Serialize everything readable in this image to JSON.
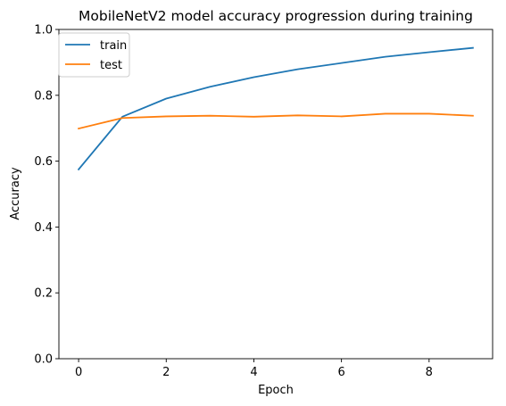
{
  "chart_data": {
    "type": "line",
    "title": "MobileNetV2 model accuracy progression during training",
    "xlabel": "Epoch",
    "ylabel": "Accuracy",
    "xlim": [
      -0.45,
      9.45
    ],
    "ylim": [
      0.0,
      1.0
    ],
    "xticks": [
      0,
      2,
      4,
      6,
      8
    ],
    "xtick_labels": [
      "0",
      "2",
      "4",
      "6",
      "8"
    ],
    "yticks": [
      0.0,
      0.2,
      0.4,
      0.6,
      0.8,
      1.0
    ],
    "ytick_labels": [
      "0.0",
      "0.2",
      "0.4",
      "0.6",
      "0.8",
      "1.0"
    ],
    "grid": false,
    "legend_position": "top-left",
    "x": [
      0,
      1,
      2,
      3,
      4,
      5,
      6,
      7,
      8,
      9
    ],
    "series": [
      {
        "name": "train",
        "color": "#1f77b4",
        "values": [
          0.575,
          0.735,
          0.79,
          0.826,
          0.855,
          0.879,
          0.898,
          0.917,
          0.931,
          0.944
        ]
      },
      {
        "name": "test",
        "color": "#ff7f0e",
        "values": [
          0.699,
          0.731,
          0.736,
          0.738,
          0.735,
          0.739,
          0.736,
          0.744,
          0.744,
          0.738
        ]
      }
    ]
  }
}
